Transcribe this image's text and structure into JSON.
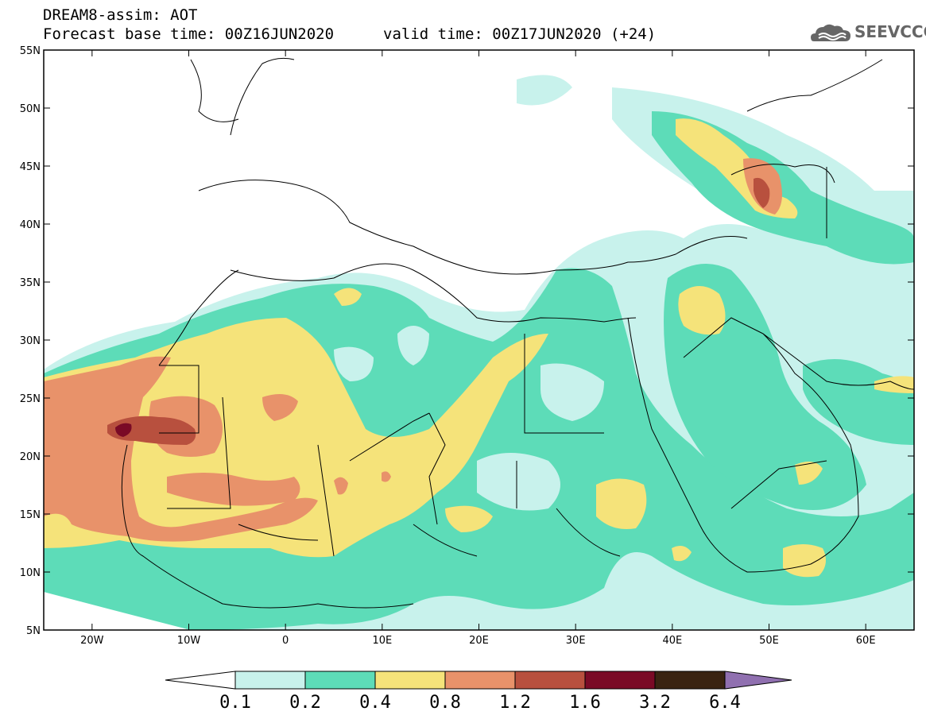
{
  "header": {
    "title": "DREAM8-assim: AOT",
    "base_time": "Forecast base time: 00Z16JUN2020",
    "valid_time": "valid time: 00Z17JUN2020 (+24)",
    "logo_text": "SEEVCCC"
  },
  "map": {
    "lon_range": [
      -25,
      65
    ],
    "lat_range": [
      5,
      55
    ],
    "lon_ticks": [
      {
        "v": -20,
        "label": "20W"
      },
      {
        "v": -10,
        "label": "10W"
      },
      {
        "v": 0,
        "label": "0"
      },
      {
        "v": 10,
        "label": "10E"
      },
      {
        "v": 20,
        "label": "20E"
      },
      {
        "v": 30,
        "label": "30E"
      },
      {
        "v": 40,
        "label": "40E"
      },
      {
        "v": 50,
        "label": "50E"
      },
      {
        "v": 60,
        "label": "60E"
      }
    ],
    "lat_ticks": [
      {
        "v": 55,
        "label": "55N"
      },
      {
        "v": 50,
        "label": "50N"
      },
      {
        "v": 45,
        "label": "45N"
      },
      {
        "v": 40,
        "label": "40N"
      },
      {
        "v": 35,
        "label": "35N"
      },
      {
        "v": 30,
        "label": "30N"
      },
      {
        "v": 25,
        "label": "25N"
      },
      {
        "v": 20,
        "label": "20N"
      },
      {
        "v": 15,
        "label": "15N"
      },
      {
        "v": 10,
        "label": "10N"
      },
      {
        "v": 5,
        "label": "5N"
      }
    ]
  },
  "colorbar": {
    "labels": [
      "0.1",
      "0.2",
      "0.4",
      "0.8",
      "1.2",
      "1.6",
      "3.2",
      "6.4"
    ],
    "colors": [
      "#c8f2ec",
      "#5ddcb8",
      "#f5e37a",
      "#e8926a",
      "#b8503e",
      "#7a0a26",
      "#3a2412",
      "#9070b0"
    ]
  }
}
